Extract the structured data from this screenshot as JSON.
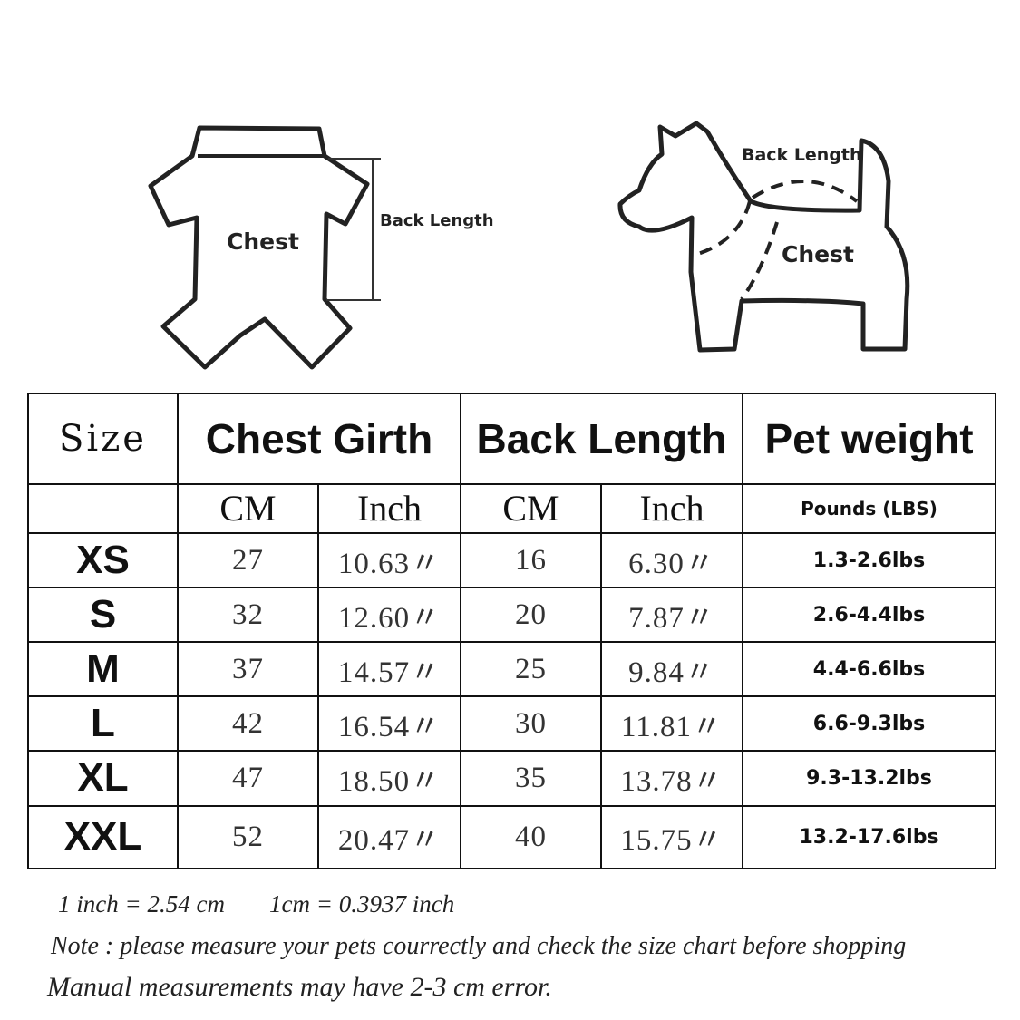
{
  "illustrations": {
    "shirt": {
      "chest_label": "Chest",
      "back_length_label": "Back Length"
    },
    "dog": {
      "back_length_label": "Back Length",
      "chest_label": "Chest"
    }
  },
  "table": {
    "headers": {
      "size": "Size",
      "chest_girth": "Chest Girth",
      "back_length": "Back Length",
      "pet_weight": "Pet weight"
    },
    "subheaders": {
      "chest_cm": "CM",
      "chest_inch": "Inch",
      "back_cm": "CM",
      "back_inch": "Inch",
      "weight_unit": "Pounds (LBS)"
    },
    "rows": [
      {
        "size": "XS",
        "chest_cm": "27",
        "chest_inch": "10.63〃",
        "back_cm": "16",
        "back_inch": "6.30〃",
        "weight": "1.3-2.6lbs"
      },
      {
        "size": "S",
        "chest_cm": "32",
        "chest_inch": "12.60〃",
        "back_cm": "20",
        "back_inch": "7.87〃",
        "weight": "2.6-4.4lbs"
      },
      {
        "size": "M",
        "chest_cm": "37",
        "chest_inch": "14.57〃",
        "back_cm": "25",
        "back_inch": "9.84〃",
        "weight": "4.4-6.6lbs"
      },
      {
        "size": "L",
        "chest_cm": "42",
        "chest_inch": "16.54〃",
        "back_cm": "30",
        "back_inch": "11.81〃",
        "weight": "6.6-9.3lbs"
      },
      {
        "size": "XL",
        "chest_cm": "47",
        "chest_inch": "18.50〃",
        "back_cm": "35",
        "back_inch": "13.78〃",
        "weight": "9.3-13.2lbs"
      },
      {
        "size": "XXL",
        "chest_cm": "52",
        "chest_inch": "20.47〃",
        "back_cm": "40",
        "back_inch": "15.75〃",
        "weight": "13.2-17.6lbs"
      }
    ]
  },
  "notes": {
    "conversion_1": "1 inch = 2.54 cm",
    "conversion_2": "1cm = 0.3937 inch",
    "note": "Note : please measure your pets courrectly and check the size chart before shopping",
    "error": "Manual measurements may have 2-3 cm error."
  }
}
